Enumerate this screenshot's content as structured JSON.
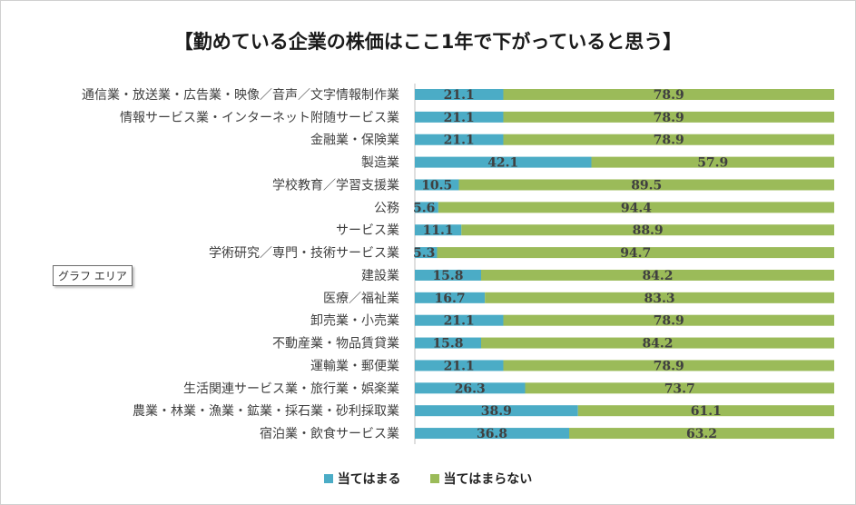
{
  "chart_data": {
    "type": "bar",
    "orientation": "horizontal",
    "stacked": true,
    "title": "【勤めている企業の株価はここ1年で下がっていると思う】",
    "categories": [
      "通信業・放送業・広告業・映像／音声／文字情報制作業",
      "情報サービス業・インターネット附随サービス業",
      "金融業・保険業",
      "製造業",
      "学校教育／学習支援業",
      "公務",
      "サービス業",
      "学術研究／専門・技術サービス業",
      "建設業",
      "医療／福祉業",
      "卸売業・小売業",
      "不動産業・物品賃貸業",
      "運輸業・郵便業",
      "生活関連サービス業・旅行業・娯楽業",
      "農業・林業・漁業・鉱業・採石業・砂利採取業",
      "宿泊業・飲食サービス業"
    ],
    "series": [
      {
        "name": "当てはまる",
        "color": "#4bacc6",
        "values": [
          21.1,
          21.1,
          21.1,
          42.1,
          10.5,
          5.6,
          11.1,
          5.3,
          15.8,
          16.7,
          21.1,
          15.8,
          21.1,
          26.3,
          38.9,
          36.8
        ]
      },
      {
        "name": "当てはまらない",
        "color": "#9bbb59",
        "values": [
          78.9,
          78.9,
          78.9,
          57.9,
          89.5,
          94.4,
          88.9,
          94.7,
          84.2,
          83.3,
          78.9,
          84.2,
          78.9,
          73.7,
          61.1,
          63.2
        ]
      }
    ],
    "data_labels": [
      [
        "21.1",
        "21.1",
        "21.1",
        "42.1",
        "10.5",
        "5.6",
        "11.1",
        "5.3",
        "15.8",
        "16.7",
        "21.1",
        "15.8",
        "21.1",
        "26.3",
        "38.9",
        "36.8"
      ],
      [
        "78.9",
        "78.9",
        "78.9",
        "57.9",
        "89.5",
        "94.4",
        "88.9",
        "94.7",
        "84.2",
        "83.3",
        "78.9",
        "84.2",
        "78.9",
        "73.7",
        "61.1",
        "63.2"
      ]
    ],
    "xlim": [
      0,
      100
    ],
    "legend_position": "bottom",
    "grid": false
  },
  "tooltip": {
    "text": "グラフ エリア"
  }
}
